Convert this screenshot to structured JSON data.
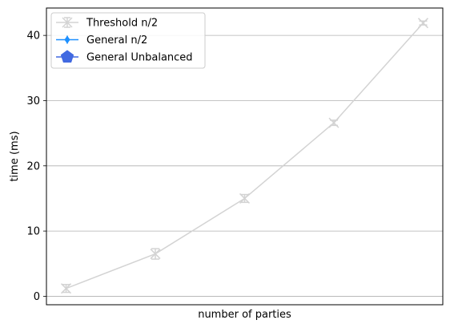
{
  "chart_data": {
    "type": "line",
    "title": "",
    "xlabel": "number of parties",
    "ylabel": "time (ms)",
    "ylim": [
      -1.3,
      44.2
    ],
    "yticks": [
      0,
      10,
      20,
      30,
      40
    ],
    "grid": "y",
    "legend_position": "top-left",
    "x_tick_labels_shown": false,
    "series": [
      {
        "name": "Threshold n/2",
        "color": "#d3d3d3",
        "marker": "x",
        "x": [
          1,
          2,
          3,
          4,
          5
        ],
        "y": [
          1.2,
          6.5,
          15.0,
          26.6,
          41.9
        ],
        "err": [
          0.6,
          0.8,
          0.6,
          0.4,
          0.3
        ]
      },
      {
        "name": "General n/2",
        "color": "#1e90ff",
        "marker": "diamond",
        "x": [],
        "y": []
      },
      {
        "name": "General Unbalanced",
        "color": "#4169e1",
        "marker": "pentagon",
        "x": [],
        "y": []
      }
    ]
  }
}
